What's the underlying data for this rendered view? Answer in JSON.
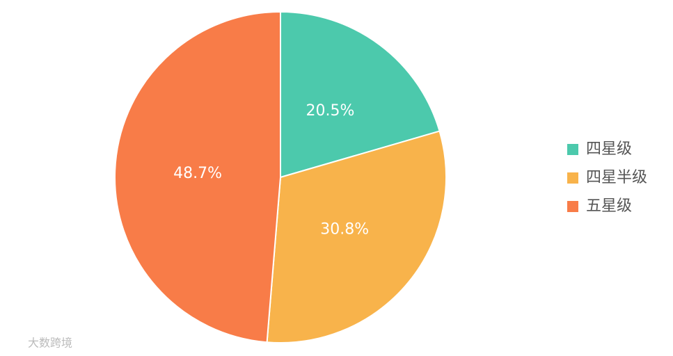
{
  "chart_data": {
    "type": "pie",
    "categories": [
      "四星级",
      "四星半级",
      "五星级"
    ],
    "values": [
      20.5,
      30.8,
      48.7
    ],
    "value_labels": [
      "20.5%",
      "30.8%",
      "48.7%"
    ],
    "colors": [
      "#4cc9ac",
      "#f8b34b",
      "#f87c48"
    ],
    "legend": "right",
    "watermark": "大数跨境"
  }
}
